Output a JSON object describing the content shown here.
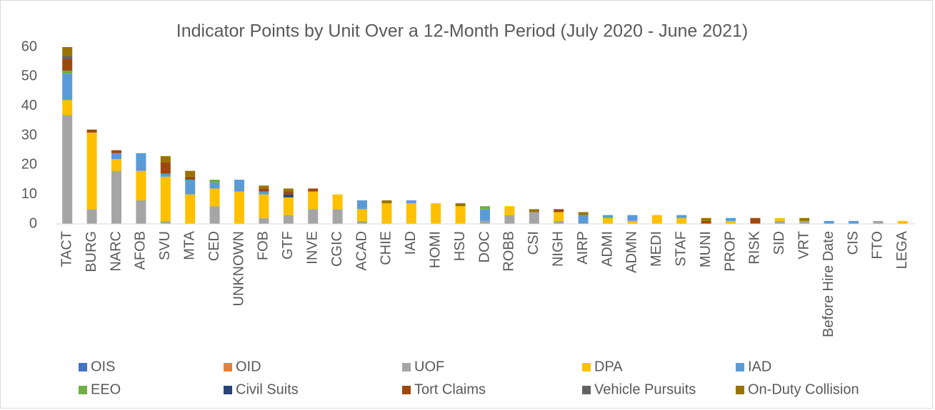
{
  "chart_data": {
    "type": "bar",
    "stacked": true,
    "title": "Indicator Points by Unit Over a 12-Month Period (July 2020 - June 2021)",
    "categories": [
      "TACT",
      "BURG",
      "NARC",
      "AFOB",
      "SVU",
      "MTA",
      "CED",
      "UNKNOWN",
      "FOB",
      "GTF",
      "INVE",
      "CGIC",
      "ACAD",
      "CHIE",
      "IAD",
      "HOMI",
      "HSU",
      "DOC",
      "ROBB",
      "CSI",
      "NIGH",
      "AIRP",
      "ADMI",
      "ADMN",
      "MEDI",
      "STAF",
      "MUNI",
      "PROP",
      "RISK",
      "SID",
      "VRT",
      "Before Hire Date",
      "CIS",
      "FTO",
      "LEGA"
    ],
    "series": [
      {
        "name": "OIS",
        "color": "#4472c4",
        "values": [
          0,
          0,
          0,
          0,
          0,
          0,
          0,
          0,
          0,
          0,
          0,
          0,
          0,
          0,
          0,
          0,
          0,
          0,
          0,
          0,
          0,
          0,
          0,
          0,
          0,
          0,
          0,
          0,
          0,
          0,
          0,
          0,
          0,
          0,
          0
        ]
      },
      {
        "name": "OID",
        "color": "#ed7d31",
        "values": [
          0,
          0,
          0,
          0,
          0,
          0,
          0,
          0,
          0,
          0,
          0,
          0,
          0,
          0,
          0,
          0,
          0,
          0,
          0,
          0,
          0,
          0,
          0,
          0,
          0,
          0,
          0,
          0,
          0,
          0,
          0,
          0,
          0,
          0,
          0
        ]
      },
      {
        "name": "UOF",
        "color": "#a5a5a5",
        "values": [
          37,
          5,
          18,
          8,
          1,
          0,
          6,
          0,
          2,
          3,
          5,
          5,
          1,
          0,
          0,
          0,
          0,
          1,
          3,
          4,
          1,
          0,
          0,
          0,
          0,
          0,
          0,
          0,
          0,
          1,
          1,
          0,
          0,
          1,
          0
        ]
      },
      {
        "name": "DPA",
        "color": "#ffc000",
        "values": [
          5,
          26,
          4,
          10,
          15,
          10,
          6,
          11,
          8,
          6,
          6,
          5,
          4,
          7,
          7,
          7,
          6,
          0,
          3,
          0,
          3,
          0,
          2,
          1,
          3,
          2,
          0,
          1,
          0,
          1,
          0,
          0,
          0,
          0,
          1
        ]
      },
      {
        "name": "IAD",
        "color": "#5b9bd5",
        "values": [
          9,
          0,
          2,
          6,
          1,
          5,
          2,
          4,
          1,
          0,
          0,
          0,
          3,
          0,
          1,
          0,
          0,
          4,
          0,
          0,
          0,
          3,
          1,
          2,
          0,
          1,
          0,
          1,
          0,
          0,
          0,
          1,
          1,
          0,
          0
        ]
      },
      {
        "name": "EEO",
        "color": "#70ad47",
        "values": [
          1,
          0,
          0,
          0,
          0,
          0,
          1,
          0,
          0,
          0,
          0,
          0,
          0,
          0,
          0,
          0,
          0,
          1,
          0,
          0,
          0,
          0,
          0,
          0,
          0,
          0,
          0,
          0,
          0,
          0,
          0,
          0,
          0,
          0,
          0
        ]
      },
      {
        "name": "Civil Suits",
        "color": "#264478",
        "values": [
          0,
          0,
          0,
          0,
          0,
          0,
          0,
          0,
          0,
          1,
          0,
          0,
          0,
          0,
          0,
          0,
          0,
          0,
          0,
          0,
          0,
          0,
          0,
          0,
          0,
          0,
          0,
          0,
          0,
          0,
          0,
          0,
          0,
          0,
          0
        ]
      },
      {
        "name": "Tort Claims",
        "color": "#9e480e",
        "values": [
          4,
          1,
          1,
          0,
          4,
          1,
          0,
          0,
          1,
          1,
          1,
          0,
          0,
          0,
          0,
          0,
          0,
          0,
          0,
          0,
          1,
          0,
          0,
          0,
          0,
          0,
          1,
          0,
          2,
          0,
          0,
          0,
          0,
          0,
          0
        ]
      },
      {
        "name": "Vehicle Pursuits",
        "color": "#636363",
        "values": [
          1,
          0,
          0,
          0,
          0,
          0,
          0,
          0,
          0,
          0,
          0,
          0,
          0,
          0,
          0,
          0,
          0,
          0,
          0,
          0,
          0,
          0,
          0,
          0,
          0,
          0,
          0,
          0,
          0,
          0,
          0,
          0,
          0,
          0,
          0
        ]
      },
      {
        "name": "On-Duty Collision",
        "color": "#997300",
        "values": [
          3,
          0,
          0,
          0,
          2,
          2,
          0,
          0,
          1,
          1,
          0,
          0,
          0,
          1,
          0,
          0,
          1,
          0,
          0,
          1,
          0,
          1,
          0,
          0,
          0,
          0,
          1,
          0,
          0,
          0,
          1,
          0,
          0,
          0,
          0
        ]
      }
    ],
    "ylim": [
      0,
      60
    ],
    "yticks": [
      0,
      10,
      20,
      30,
      40,
      50,
      60
    ],
    "grid": false
  }
}
